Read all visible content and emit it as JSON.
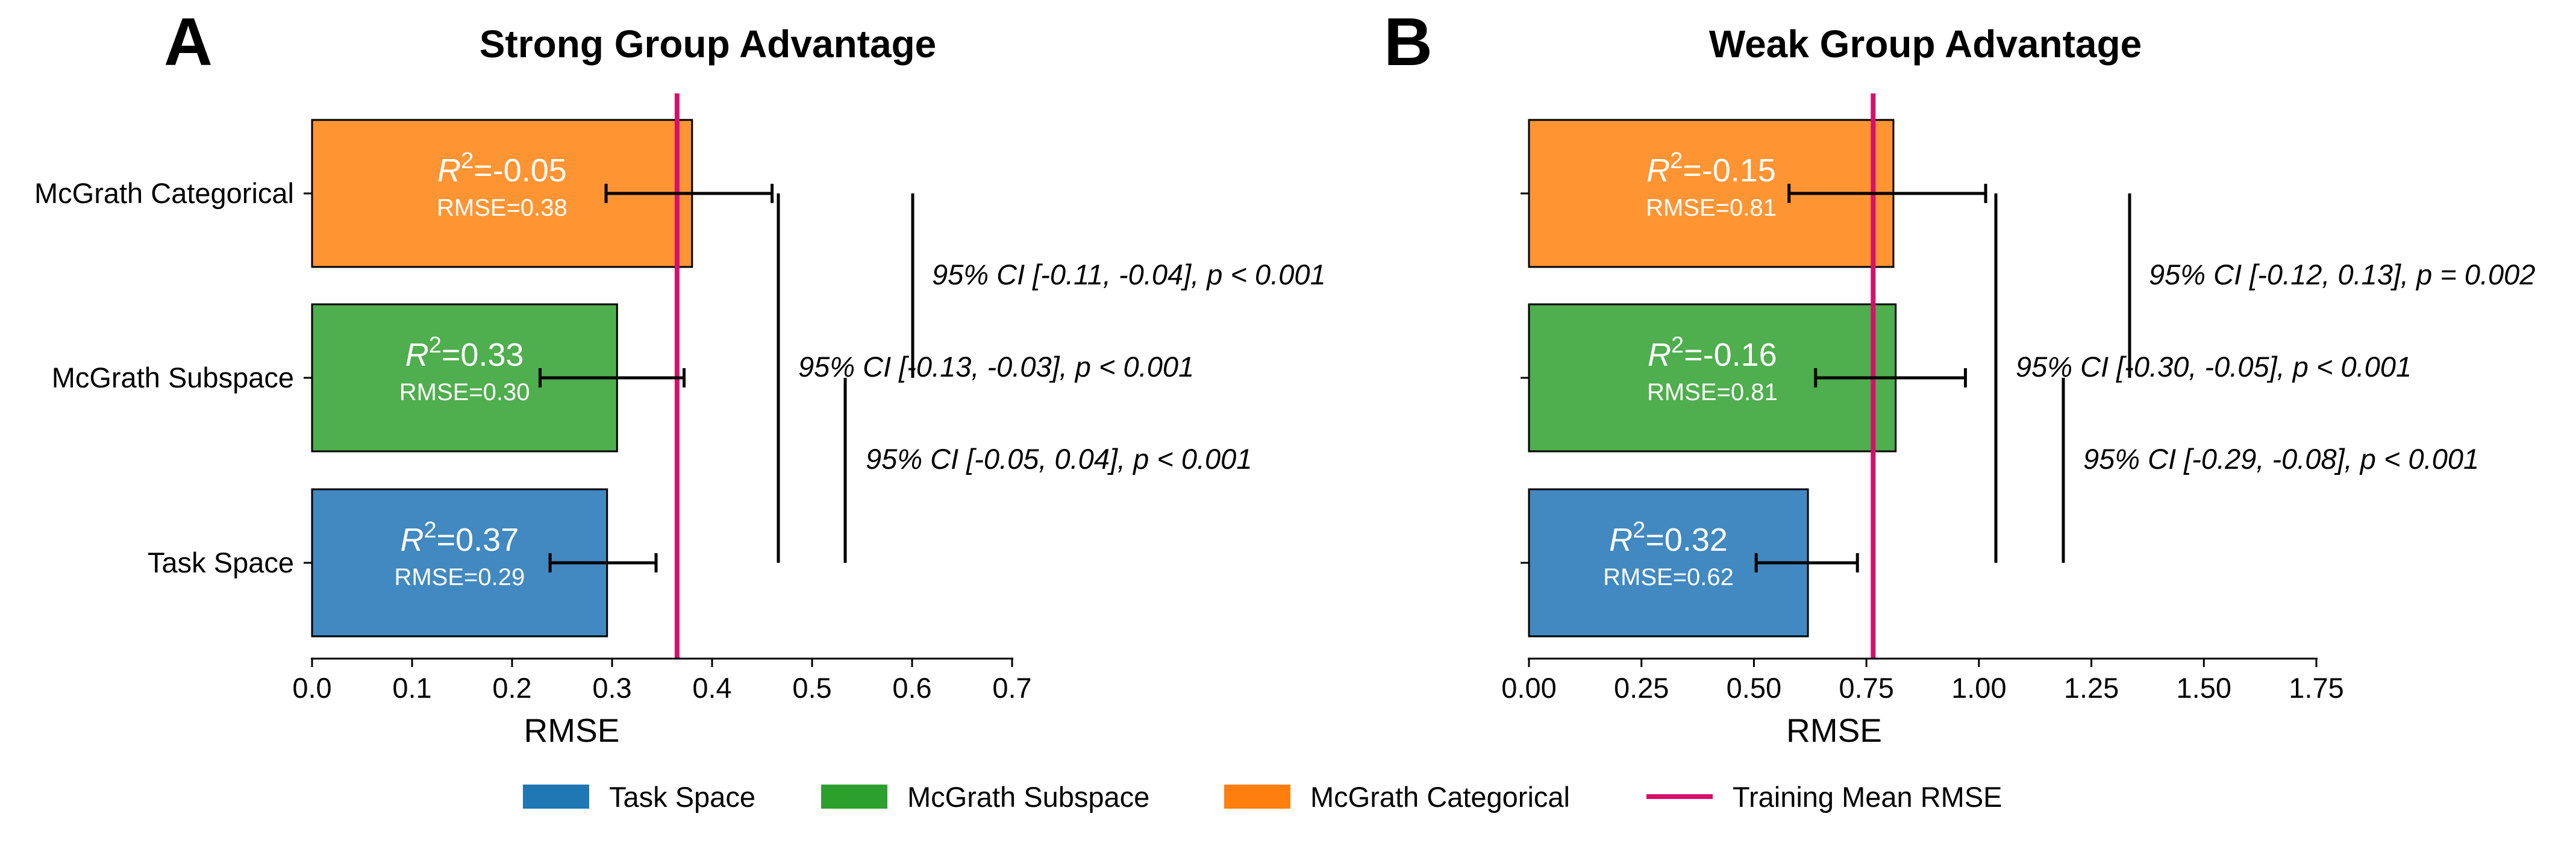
{
  "colors": {
    "Task Space": "#4189c0",
    "McGrath Subspace": "#4fae4d",
    "McGrath Categorical": "#ff9433",
    "training_line": "#d6106b",
    "legend_task": "#1f77b4",
    "legend_subspace": "#2ca02c",
    "legend_categorical": "#ff7f0e"
  },
  "chart_data": [
    {
      "type": "bar",
      "orientation": "horizontal",
      "panel": "A",
      "title": "Strong Group Advantage",
      "xlabel": "RMSE",
      "xlim": [
        0.0,
        0.7
      ],
      "xticks": [
        0.0,
        0.1,
        0.2,
        0.3,
        0.4,
        0.5,
        0.6,
        0.7
      ],
      "xtick_labels": [
        "0.0",
        "0.1",
        "0.2",
        "0.3",
        "0.4",
        "0.5",
        "0.6",
        "0.7"
      ],
      "categories": [
        "McGrath Categorical",
        "McGrath Subspace",
        "Task Space"
      ],
      "values": [
        0.38,
        0.305,
        0.295
      ],
      "error_low": [
        0.294,
        0.228,
        0.238
      ],
      "error_high": [
        0.46,
        0.372,
        0.344
      ],
      "r2_labels": [
        "=-0.05",
        "=0.33",
        "=0.37"
      ],
      "rmse_labels": [
        "RMSE=0.38",
        "RMSE=0.30",
        "RMSE=0.29"
      ],
      "training_mean_rmse": 0.365,
      "comparisons": [
        {
          "between": [
            "McGrath Categorical",
            "McGrath Subspace"
          ],
          "text": "95% CI [-0.11, -0.04], p < 0.001"
        },
        {
          "between": [
            "McGrath Categorical",
            "Task Space"
          ],
          "text": "95% CI [-0.13, -0.03], p < 0.001"
        },
        {
          "between": [
            "McGrath Subspace",
            "Task Space"
          ],
          "text": "95% CI [-0.05, 0.04], p < 0.001"
        }
      ]
    },
    {
      "type": "bar",
      "orientation": "horizontal",
      "panel": "B",
      "title": "Weak Group Advantage",
      "xlabel": "RMSE",
      "xlim": [
        0.0,
        1.75
      ],
      "xticks": [
        0.0,
        0.25,
        0.5,
        0.75,
        1.0,
        1.25,
        1.5,
        1.75
      ],
      "xtick_labels": [
        "0.00",
        "0.25",
        "0.50",
        "0.75",
        "1.00",
        "1.25",
        "1.50",
        "1.75"
      ],
      "categories": [
        "McGrath Categorical",
        "McGrath Subspace",
        "Task Space"
      ],
      "values": [
        0.81,
        0.815,
        0.62
      ],
      "error_low": [
        0.578,
        0.637,
        0.505
      ],
      "error_high": [
        1.015,
        0.97,
        0.73
      ],
      "r2_labels": [
        "=-0.15",
        "=-0.16",
        "=0.32"
      ],
      "rmse_labels": [
        "RMSE=0.81",
        "RMSE=0.81",
        "RMSE=0.62"
      ],
      "training_mean_rmse": 0.765,
      "comparisons": [
        {
          "between": [
            "McGrath Categorical",
            "McGrath Subspace"
          ],
          "text": "95% CI [-0.12, 0.13], p = 0.002"
        },
        {
          "between": [
            "McGrath Categorical",
            "Task Space"
          ],
          "text": "95% CI [-0.30, -0.05], p < 0.001"
        },
        {
          "between": [
            "McGrath Subspace",
            "Task Space"
          ],
          "text": "95% CI [-0.29, -0.08], p < 0.001"
        }
      ]
    }
  ],
  "legend": [
    {
      "label": "Task Space",
      "type": "patch",
      "color": "#1f77b4"
    },
    {
      "label": "McGrath Subspace",
      "type": "patch",
      "color": "#2ca02c"
    },
    {
      "label": "McGrath Categorical",
      "type": "patch",
      "color": "#ff7f0e"
    },
    {
      "label": "Training Mean RMSE",
      "type": "line",
      "color": "#d6106b"
    }
  ],
  "legend_placement": "bottom-center"
}
